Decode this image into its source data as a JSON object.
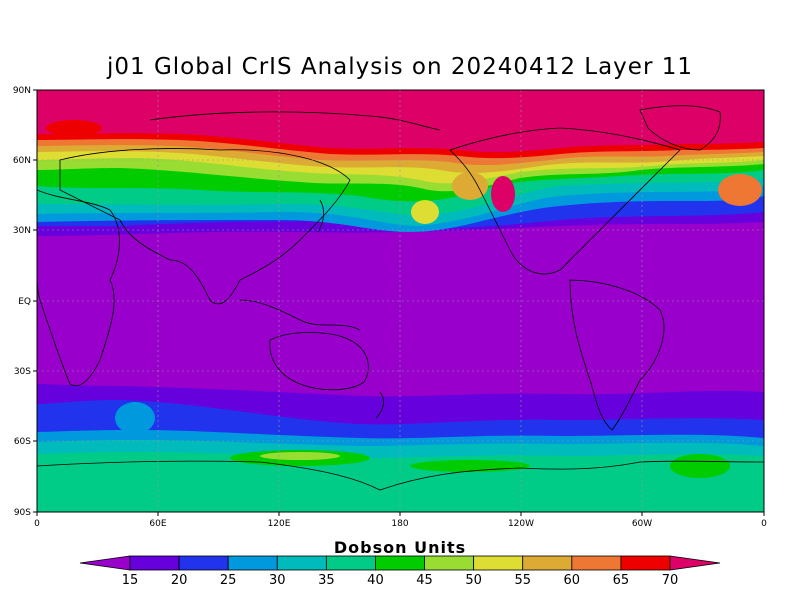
{
  "title": "j01 Global CrIS Analysis on 20240412 Layer 11",
  "colorbar": {
    "unit_label": "Dobson Units",
    "ticks": [
      "15",
      "20",
      "25",
      "30",
      "35",
      "40",
      "45",
      "50",
      "55",
      "60",
      "65",
      "70"
    ],
    "colors": [
      "#9900cc",
      "#6600dd",
      "#2233ee",
      "#0099dd",
      "#00bbbb",
      "#00cc88",
      "#00cc00",
      "#99dd33",
      "#dddd33",
      "#ddaa33",
      "#ee7733",
      "#ee0000",
      "#dd0066"
    ]
  },
  "axes": {
    "lat_labels": [
      "90N",
      "60N",
      "30N",
      "EQ",
      "30S",
      "60S",
      "90S"
    ],
    "lon_labels": [
      "0",
      "60E",
      "120E",
      "180",
      "120W",
      "60W",
      "0"
    ]
  }
}
